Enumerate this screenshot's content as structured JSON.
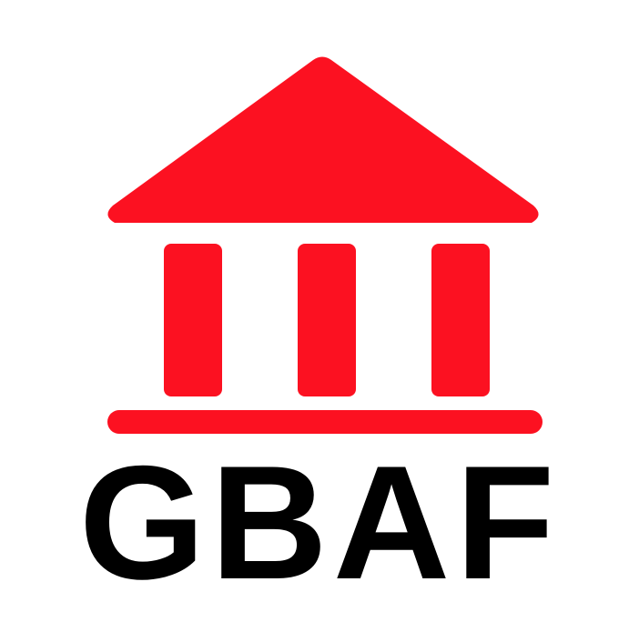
{
  "logo": {
    "name": "GBAF",
    "icon": "bank-building-icon",
    "colors": {
      "accent": "#fc1121",
      "text": "#000000",
      "background": "#ffffff"
    }
  }
}
